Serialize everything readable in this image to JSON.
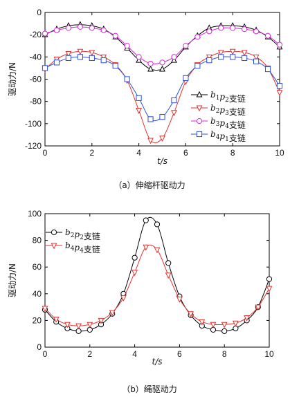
{
  "chart_data": [
    {
      "type": "line",
      "caption": "（a）伸缩杆驱动力",
      "xlabel": "t/s",
      "ylabel": "驱动力/N",
      "xlim": [
        0,
        10
      ],
      "ylim": [
        -120,
        0
      ],
      "xticks": [
        "0",
        "2",
        "4",
        "6",
        "8",
        "10"
      ],
      "yticks": [
        "0",
        "-20",
        "-40",
        "-60",
        "-80",
        "-100",
        "-120"
      ],
      "x": [
        0,
        0.5,
        1,
        1.5,
        2,
        2.5,
        3,
        3.5,
        4,
        4.5,
        5,
        5.5,
        6,
        6.5,
        7,
        7.5,
        8,
        8.5,
        9,
        9.5,
        10
      ],
      "legend_position": "right",
      "series": [
        {
          "name": "b1p2支链",
          "name_parts": [
            [
              "b",
              "1"
            ],
            [
              "p",
              "2"
            ]
          ],
          "suffix": "支链",
          "marker": "triangle-up",
          "color": "#000000",
          "values": [
            -20,
            -15,
            -12,
            -11,
            -12,
            -15,
            -22,
            -32,
            -43,
            -51,
            -51,
            -43,
            -31,
            -21,
            -14,
            -12,
            -12,
            -13,
            -16,
            -22,
            -31
          ]
        },
        {
          "name": "b2p3支链",
          "name_parts": [
            [
              "b",
              "2"
            ],
            [
              "p",
              "3"
            ]
          ],
          "suffix": "支链",
          "marker": "triangle-down",
          "color": "#e0322e",
          "values": [
            -51,
            -42,
            -37,
            -35,
            -36,
            -40,
            -47,
            -61,
            -88,
            -115,
            -113,
            -90,
            -62,
            -47,
            -40,
            -36,
            -35,
            -36,
            -40,
            -50,
            -72
          ]
        },
        {
          "name": "b3p4支链",
          "name_parts": [
            [
              "b",
              "3"
            ],
            [
              "p",
              "4"
            ]
          ],
          "suffix": "支链",
          "marker": "circle",
          "color": "#d625d6",
          "values": [
            -19,
            -16,
            -14,
            -13,
            -14,
            -16,
            -21,
            -30,
            -40,
            -46,
            -45,
            -40,
            -30,
            -22,
            -17,
            -14,
            -14,
            -15,
            -17,
            -21,
            -29
          ]
        },
        {
          "name": "b4p1支链",
          "name_parts": [
            [
              "b",
              "4"
            ],
            [
              "p",
              "1"
            ]
          ],
          "suffix": "支链",
          "marker": "square",
          "color": "#2b4fd3",
          "values": [
            -50,
            -45,
            -41,
            -40,
            -41,
            -43,
            -48,
            -60,
            -77,
            -96,
            -94,
            -79,
            -59,
            -48,
            -43,
            -40,
            -40,
            -41,
            -44,
            -51,
            -66
          ]
        }
      ]
    },
    {
      "type": "line",
      "caption": "（b）绳驱动力",
      "xlabel": "t/s",
      "ylabel": "驱动力/N",
      "xlim": [
        0,
        10
      ],
      "ylim": [
        0,
        100
      ],
      "xticks": [
        "0",
        "2",
        "4",
        "6",
        "8",
        "10"
      ],
      "yticks": [
        "0",
        "20",
        "40",
        "60",
        "80",
        "100"
      ],
      "x": [
        0,
        0.5,
        1,
        1.5,
        2,
        2.5,
        3,
        3.5,
        4,
        4.5,
        5,
        5.5,
        6,
        6.5,
        7,
        7.5,
        8,
        8.5,
        9,
        9.5,
        10
      ],
      "legend_position": "top-left",
      "series": [
        {
          "name": "b2p2支链",
          "name_parts": [
            [
              "b",
              "2"
            ],
            [
              "p",
              "2"
            ]
          ],
          "suffix": "支链",
          "marker": "circle",
          "color": "#000000",
          "values": [
            28,
            19,
            14,
            12,
            13,
            17,
            25,
            40,
            67,
            95,
            92,
            63,
            38,
            24,
            16,
            13,
            12,
            14,
            20,
            30,
            51
          ]
        },
        {
          "name": "b4p4支链",
          "name_parts": [
            [
              "b",
              "4"
            ],
            [
              "p",
              "4"
            ]
          ],
          "suffix": "支链",
          "marker": "triangle-down",
          "color": "#e0322e",
          "values": [
            29,
            21,
            17,
            16,
            17,
            20,
            26,
            37,
            56,
            75,
            73,
            54,
            36,
            25,
            19,
            17,
            17,
            18,
            22,
            30,
            44
          ]
        }
      ]
    }
  ]
}
